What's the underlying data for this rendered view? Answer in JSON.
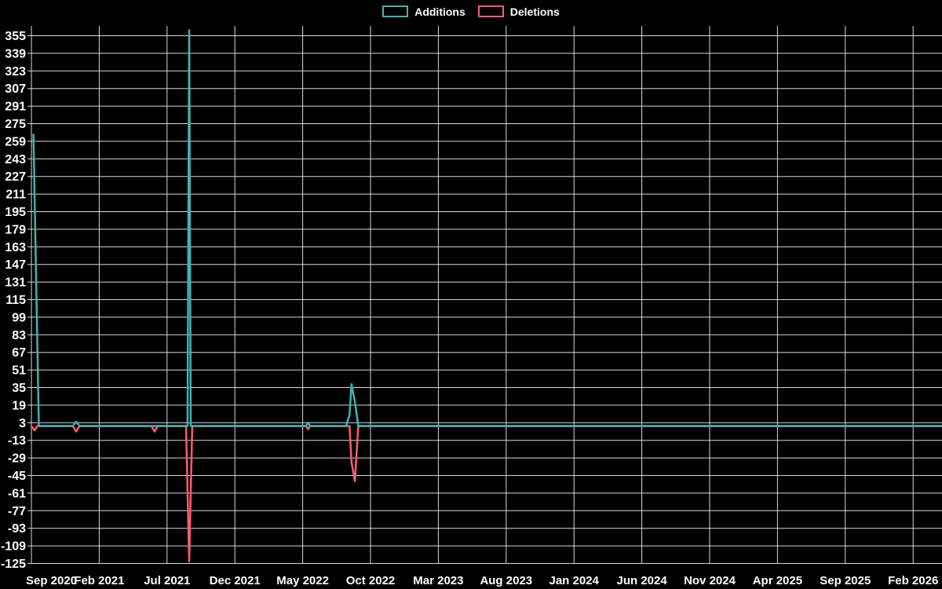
{
  "legend": {
    "items": [
      {
        "label": "Additions",
        "color": "#44b2b2"
      },
      {
        "label": "Deletions",
        "color": "#f95d75"
      }
    ]
  },
  "chart_data": {
    "type": "line",
    "title": "",
    "legend_position": "top-center",
    "grid": true,
    "colors": {
      "background": "#000000",
      "grid": "#d9d9d9",
      "text": "#ffffff",
      "additions": "#44b2b2",
      "deletions": "#f95d75"
    },
    "x_axis": {
      "tick_labels": [
        "Sep 2020",
        "Feb 2021",
        "Jul 2021",
        "Dec 2021",
        "May 2022",
        "Oct 2022",
        "Mar 2023",
        "Aug 2023",
        "Jan 2024",
        "Jun 2024",
        "Nov 2024",
        "Apr 2025",
        "Sep 2025",
        "Feb 2026"
      ],
      "months_per_tick": 5,
      "x_unit": "months_after_first_tick",
      "x_data_max": 67.2
    },
    "y_axis": {
      "ticks": [
        355,
        339,
        323,
        307,
        291,
        275,
        259,
        243,
        227,
        211,
        195,
        179,
        163,
        147,
        131,
        115,
        99,
        83,
        67,
        51,
        35,
        19,
        3,
        -13,
        -29,
        -45,
        -61,
        -77,
        -93,
        -109,
        -125
      ],
      "tick_step": 16,
      "min": -125,
      "max": 366
    },
    "series": [
      {
        "name": "Additions",
        "color": "#44b2b2",
        "points": [
          [
            0.15,
            265
          ],
          [
            0.55,
            0
          ],
          [
            3.05,
            0
          ],
          [
            3.3,
            4
          ],
          [
            3.55,
            0
          ],
          [
            11.51,
            0
          ],
          [
            11.63,
            360
          ],
          [
            11.75,
            0
          ],
          [
            20.25,
            0
          ],
          [
            20.4,
            3
          ],
          [
            20.55,
            0
          ],
          [
            23.2,
            0
          ],
          [
            23.45,
            10
          ],
          [
            23.6,
            38
          ],
          [
            23.85,
            22
          ],
          [
            24.1,
            0
          ],
          [
            67.2,
            0
          ]
        ]
      },
      {
        "name": "Deletions",
        "color": "#f95d75",
        "points": [
          [
            0.0,
            0
          ],
          [
            0.23,
            -4
          ],
          [
            0.42,
            0
          ],
          [
            3.05,
            0
          ],
          [
            3.3,
            -5
          ],
          [
            3.55,
            0
          ],
          [
            8.85,
            0
          ],
          [
            9.08,
            -5
          ],
          [
            9.3,
            0
          ],
          [
            11.4,
            0
          ],
          [
            11.63,
            -123
          ],
          [
            11.86,
            0
          ],
          [
            20.25,
            0
          ],
          [
            20.4,
            -3
          ],
          [
            20.55,
            0
          ],
          [
            23.45,
            0
          ],
          [
            23.6,
            -33
          ],
          [
            23.85,
            -50
          ],
          [
            24.1,
            0
          ],
          [
            67.2,
            0
          ]
        ]
      }
    ]
  }
}
